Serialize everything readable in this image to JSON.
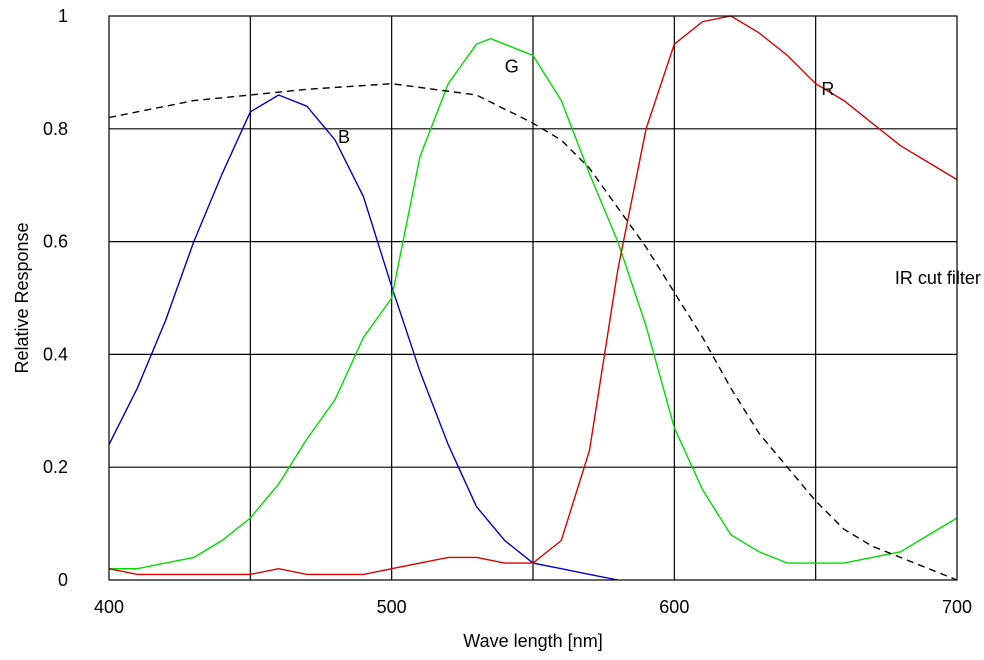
{
  "chart_data": {
    "type": "line",
    "xlabel": "Wave length [nm]",
    "ylabel": "Relative Response",
    "xlim": [
      400,
      700
    ],
    "ylim": [
      0,
      1
    ],
    "xticks": [
      400,
      500,
      600,
      700
    ],
    "xtick_labels": [
      "400",
      "500",
      "600",
      "700"
    ],
    "yticks": [
      0,
      0.2,
      0.4,
      0.6,
      0.8,
      1
    ],
    "ytick_labels": [
      "0",
      "0.2",
      "0.4",
      "0.6",
      "0.8",
      "1"
    ],
    "grid": true,
    "x_grid": [
      450,
      500,
      550,
      600,
      650
    ],
    "y_grid": [
      0.2,
      0.4,
      0.6,
      0.8
    ],
    "series": [
      {
        "name": "B",
        "color": "#0000cc",
        "dash": false,
        "x": [
          400,
          410,
          420,
          430,
          440,
          450,
          460,
          470,
          480,
          490,
          500,
          510,
          520,
          530,
          540,
          550,
          560,
          570,
          580
        ],
        "y": [
          0.24,
          0.34,
          0.46,
          0.6,
          0.72,
          0.83,
          0.86,
          0.84,
          0.78,
          0.68,
          0.52,
          0.37,
          0.24,
          0.13,
          0.07,
          0.03,
          0.02,
          0.01,
          0.0
        ]
      },
      {
        "name": "G",
        "color": "#00dd00",
        "dash": false,
        "x": [
          400,
          410,
          420,
          430,
          440,
          450,
          460,
          470,
          480,
          490,
          500,
          510,
          520,
          530,
          535,
          550,
          560,
          570,
          580,
          590,
          600,
          610,
          620,
          630,
          640,
          650,
          660,
          670,
          680,
          690,
          700
        ],
        "y": [
          0.02,
          0.02,
          0.03,
          0.04,
          0.07,
          0.11,
          0.17,
          0.25,
          0.32,
          0.43,
          0.5,
          0.75,
          0.88,
          0.95,
          0.96,
          0.93,
          0.85,
          0.72,
          0.6,
          0.45,
          0.27,
          0.16,
          0.08,
          0.05,
          0.03,
          0.03,
          0.03,
          0.04,
          0.05,
          0.08,
          0.11
        ]
      },
      {
        "name": "R",
        "color": "#dd0000",
        "dash": false,
        "x": [
          400,
          410,
          420,
          430,
          440,
          450,
          460,
          470,
          480,
          490,
          500,
          510,
          520,
          530,
          540,
          550,
          560,
          570,
          580,
          590,
          600,
          610,
          620,
          630,
          640,
          650,
          660,
          670,
          680,
          690,
          700
        ],
        "y": [
          0.02,
          0.01,
          0.01,
          0.01,
          0.01,
          0.01,
          0.02,
          0.01,
          0.01,
          0.01,
          0.02,
          0.03,
          0.04,
          0.04,
          0.03,
          0.03,
          0.07,
          0.23,
          0.55,
          0.8,
          0.95,
          0.99,
          1.0,
          0.97,
          0.93,
          0.88,
          0.85,
          0.81,
          0.77,
          0.74,
          0.71
        ]
      },
      {
        "name": "IR cut filter",
        "color": "#000000",
        "dash": true,
        "x": [
          400,
          430,
          450,
          470,
          500,
          530,
          550,
          560,
          570,
          580,
          590,
          600,
          610,
          620,
          630,
          640,
          650,
          660,
          670,
          680,
          690,
          700
        ],
        "y": [
          0.82,
          0.85,
          0.86,
          0.87,
          0.88,
          0.86,
          0.81,
          0.78,
          0.73,
          0.66,
          0.59,
          0.51,
          0.43,
          0.34,
          0.26,
          0.2,
          0.14,
          0.09,
          0.06,
          0.04,
          0.02,
          0.0
        ]
      }
    ],
    "annotations": [
      {
        "text": "B",
        "x": 481,
        "y": 0.775
      },
      {
        "text": "G",
        "x": 540,
        "y": 0.9
      },
      {
        "text": "R",
        "x": 652,
        "y": 0.86
      },
      {
        "text": "IR cut filter",
        "x": 678,
        "y": 0.525
      }
    ]
  }
}
